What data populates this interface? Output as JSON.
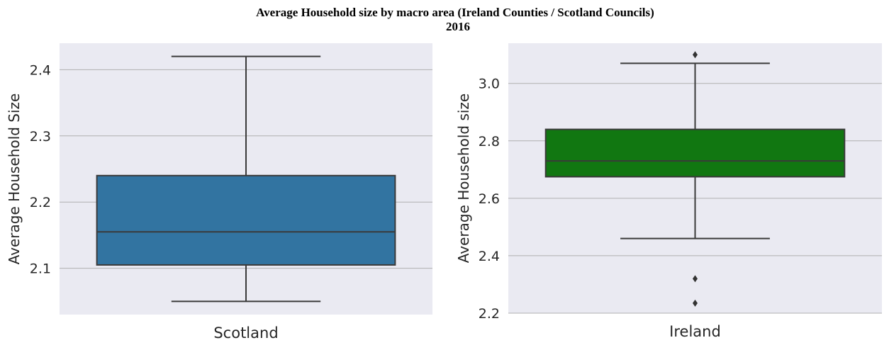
{
  "title": {
    "line1": "Average Household size by macro area (Ireland Counties / Scotland Councils)",
    "line2": "2016"
  },
  "colors": {
    "background": "#eaeaf2",
    "grid": "#b0b0b0",
    "line": "#3a3a3a",
    "scotland_box": "#3274a1",
    "ireland_box": "#117711"
  },
  "chart_data": [
    {
      "type": "box",
      "category": "Scotland",
      "ylabel": "Average Household Size",
      "ylim": [
        2.03,
        2.44
      ],
      "yticks": [
        2.1,
        2.2,
        2.3,
        2.4
      ],
      "ytick_labels": [
        "2.1",
        "2.2",
        "2.3",
        "2.4"
      ],
      "grid": true,
      "color": "#3274a1",
      "whisker_low": 2.05,
      "q1": 2.105,
      "median": 2.155,
      "q3": 2.24,
      "whisker_high": 2.42,
      "outliers": []
    },
    {
      "type": "box",
      "category": "Ireland",
      "ylabel": "Average Household size",
      "ylim": [
        2.2,
        3.14
      ],
      "yticks": [
        2.2,
        2.4,
        2.6,
        2.8,
        3.0
      ],
      "ytick_labels": [
        "2.2",
        "2.4",
        "2.6",
        "2.8",
        "3.0"
      ],
      "grid": true,
      "color": "#117711",
      "whisker_low": 2.46,
      "q1": 2.675,
      "median": 2.73,
      "q3": 2.84,
      "whisker_high": 3.07,
      "outliers": [
        3.1,
        2.32,
        2.235
      ]
    }
  ]
}
